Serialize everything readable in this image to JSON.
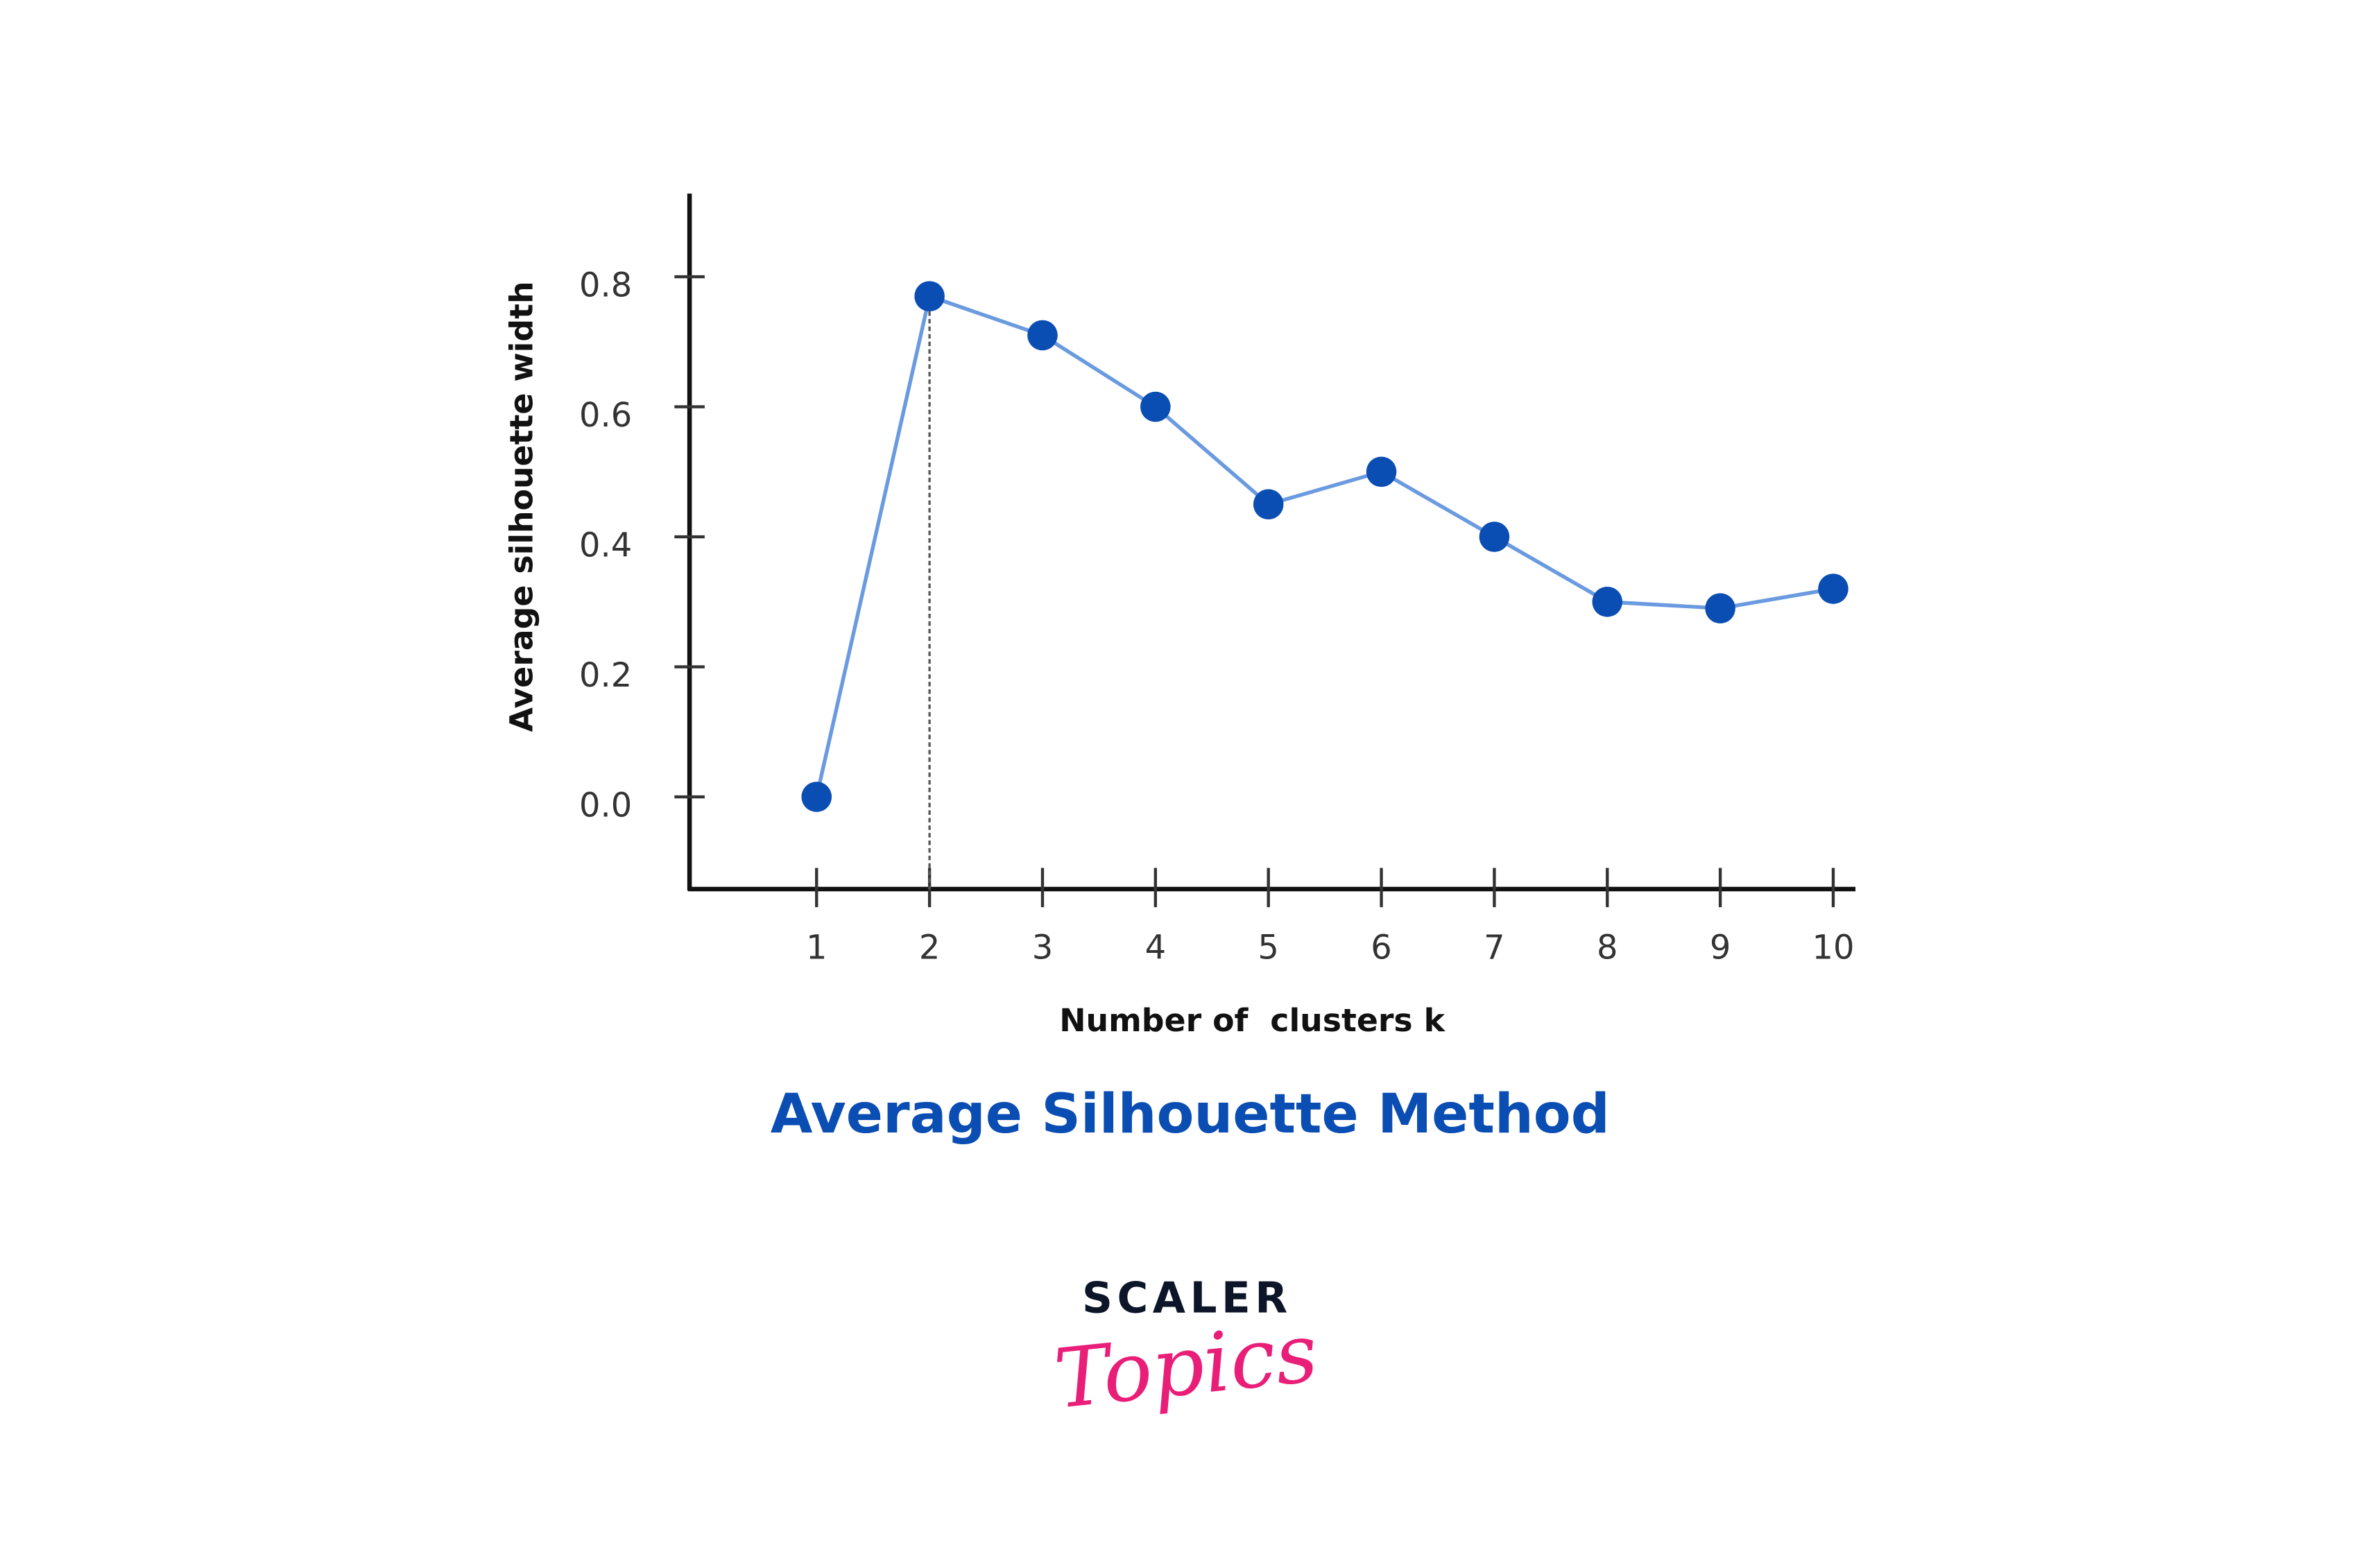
{
  "chart_data": {
    "type": "line",
    "title": "Average Silhouette Method",
    "xlabel": "Number of  clusters k",
    "ylabel": "Average silhouette width",
    "x": [
      1,
      2,
      3,
      4,
      5,
      6,
      7,
      8,
      9,
      10
    ],
    "series": [
      {
        "name": "Average silhouette width",
        "values": [
          0.0,
          0.77,
          0.71,
          0.6,
          0.45,
          0.5,
          0.4,
          0.3,
          0.29,
          0.32
        ]
      }
    ],
    "ylim": [
      -0.14,
      0.93
    ],
    "yticks": [
      "0.0",
      "0.2",
      "0.4",
      "0.6",
      "0.8"
    ],
    "xticks": [
      "1",
      "2",
      "3",
      "4",
      "5",
      "6",
      "7",
      "8",
      "9",
      "10"
    ],
    "optimal_k": 2,
    "grid": false,
    "colors": {
      "line": "#6a9ae0",
      "marker": "#0a4db3",
      "title": "#0a4db3"
    }
  },
  "logo": {
    "line1": "SCALER",
    "line2": "Topics"
  }
}
